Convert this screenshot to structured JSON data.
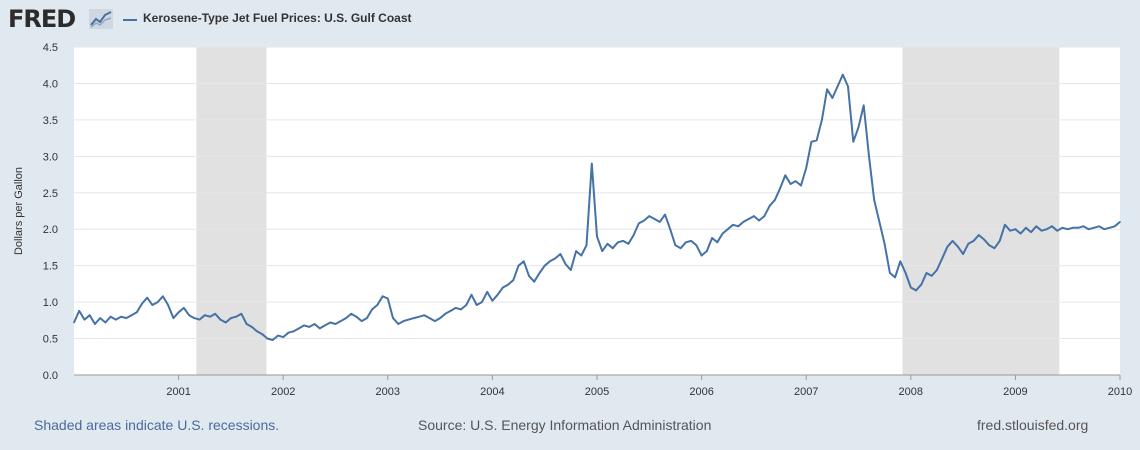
{
  "logo": {
    "text": "FRED"
  },
  "legend": {
    "series_name": "Kerosene-Type Jet Fuel Prices: U.S. Gulf Coast"
  },
  "footer": {
    "recession_note": "Shaded areas indicate U.S. recessions.",
    "source": "Source: U.S. Energy Information Administration",
    "url": "fred.stlouisfed.org"
  },
  "colors": {
    "series": "#4572a7",
    "recession": "#e1e1e1",
    "grid": "#e6e6e6",
    "background": "#e1e9f0"
  },
  "chart_data": {
    "type": "line",
    "title": "",
    "xlabel": "",
    "ylabel": "Dollars per Gallon",
    "ylim": [
      0,
      4.5
    ],
    "yticks": [
      "0.0",
      "0.5",
      "1.0",
      "1.5",
      "2.0",
      "2.5",
      "3.0",
      "3.5",
      "4.0",
      "4.5"
    ],
    "xlim": [
      2000.0,
      2010.0
    ],
    "xticks": [
      "2001",
      "2002",
      "2003",
      "2004",
      "2005",
      "2006",
      "2007",
      "2008",
      "2009",
      "2010"
    ],
    "grid": true,
    "legend_position": "top-left",
    "recessions": [
      [
        2001.17,
        2001.84
      ],
      [
        2007.92,
        2009.42
      ]
    ],
    "series": [
      {
        "name": "Kerosene-Type Jet Fuel Prices: U.S. Gulf Coast",
        "x": [
          2000.0,
          2000.05,
          2000.1,
          2000.15,
          2000.2,
          2000.25,
          2000.3,
          2000.35,
          2000.4,
          2000.45,
          2000.5,
          2000.55,
          2000.6,
          2000.65,
          2000.7,
          2000.75,
          2000.8,
          2000.85,
          2000.9,
          2000.95,
          2001.0,
          2001.05,
          2001.1,
          2001.15,
          2001.2,
          2001.25,
          2001.3,
          2001.35,
          2001.4,
          2001.45,
          2001.5,
          2001.55,
          2001.6,
          2001.65,
          2001.7,
          2001.75,
          2001.8,
          2001.85,
          2001.9,
          2001.95,
          2002.0,
          2002.05,
          2002.1,
          2002.15,
          2002.2,
          2002.25,
          2002.3,
          2002.35,
          2002.4,
          2002.45,
          2002.5,
          2002.55,
          2002.6,
          2002.65,
          2002.7,
          2002.75,
          2002.8,
          2002.85,
          2002.9,
          2002.95,
          2003.0,
          2003.05,
          2003.1,
          2003.15,
          2003.2,
          2003.25,
          2003.3,
          2003.35,
          2003.4,
          2003.45,
          2003.5,
          2003.55,
          2003.6,
          2003.65,
          2003.7,
          2003.75,
          2003.8,
          2003.85,
          2003.9,
          2003.95,
          2004.0,
          2004.05,
          2004.1,
          2004.15,
          2004.2,
          2004.25,
          2004.3,
          2004.35,
          2004.4,
          2004.45,
          2004.5,
          2004.55,
          2004.6,
          2004.65,
          2004.7,
          2004.75,
          2004.8,
          2004.85,
          2004.9,
          2004.95,
          2005.0,
          2005.05,
          2005.1,
          2005.15,
          2005.2,
          2005.25,
          2005.3,
          2005.35,
          2005.4,
          2005.45,
          2005.5,
          2005.55,
          2005.6,
          2005.65,
          2005.7,
          2005.75,
          2005.8,
          2005.85,
          2005.9,
          2005.95,
          2006.0,
          2006.05,
          2006.1,
          2006.15,
          2006.2,
          2006.25,
          2006.3,
          2006.35,
          2006.4,
          2006.45,
          2006.5,
          2006.55,
          2006.6,
          2006.65,
          2006.7,
          2006.75,
          2006.8,
          2006.85,
          2006.9,
          2006.95,
          2007.0,
          2007.05,
          2007.1,
          2007.15,
          2007.2,
          2007.25,
          2007.3,
          2007.35,
          2007.4,
          2007.45,
          2007.5,
          2007.55,
          2007.6,
          2007.65,
          2007.7,
          2007.75,
          2007.8,
          2007.85,
          2007.9,
          2007.95,
          2008.0,
          2008.05,
          2008.1,
          2008.15,
          2008.2,
          2008.25,
          2008.3,
          2008.35,
          2008.4,
          2008.45,
          2008.5,
          2008.55,
          2008.6,
          2008.65,
          2008.7,
          2008.75,
          2008.8,
          2008.85,
          2008.9,
          2008.95,
          2009.0,
          2009.05,
          2009.1,
          2009.15,
          2009.2,
          2009.25,
          2009.3,
          2009.35,
          2009.4,
          2009.45,
          2009.5,
          2009.55,
          2009.6,
          2009.65,
          2009.7,
          2009.75,
          2009.8,
          2009.85,
          2009.9,
          2009.95,
          2010.0
        ],
        "y": [
          0.72,
          0.88,
          0.76,
          0.82,
          0.7,
          0.78,
          0.72,
          0.8,
          0.76,
          0.8,
          0.78,
          0.82,
          0.86,
          0.98,
          1.06,
          0.96,
          1.0,
          1.08,
          0.96,
          0.78,
          0.86,
          0.92,
          0.82,
          0.78,
          0.76,
          0.82,
          0.8,
          0.84,
          0.76,
          0.72,
          0.78,
          0.8,
          0.84,
          0.7,
          0.66,
          0.6,
          0.56,
          0.5,
          0.48,
          0.54,
          0.52,
          0.58,
          0.6,
          0.64,
          0.68,
          0.66,
          0.7,
          0.64,
          0.68,
          0.72,
          0.7,
          0.74,
          0.78,
          0.84,
          0.8,
          0.74,
          0.78,
          0.9,
          0.96,
          1.08,
          1.05,
          0.78,
          0.7,
          0.74,
          0.76,
          0.78,
          0.8,
          0.82,
          0.78,
          0.74,
          0.78,
          0.84,
          0.88,
          0.92,
          0.9,
          0.96,
          1.1,
          0.96,
          1.0,
          1.14,
          1.02,
          1.1,
          1.2,
          1.24,
          1.3,
          1.5,
          1.56,
          1.36,
          1.28,
          1.4,
          1.5,
          1.56,
          1.6,
          1.66,
          1.52,
          1.44,
          1.7,
          1.64,
          1.78,
          2.9,
          1.9,
          1.7,
          1.8,
          1.74,
          1.82,
          1.84,
          1.8,
          1.92,
          2.08,
          2.12,
          2.18,
          2.14,
          2.1,
          2.2,
          2.0,
          1.78,
          1.74,
          1.82,
          1.84,
          1.78,
          1.64,
          1.7,
          1.88,
          1.82,
          1.94,
          2.0,
          2.06,
          2.04,
          2.1,
          2.14,
          2.18,
          2.12,
          2.18,
          2.32,
          2.4,
          2.56,
          2.74,
          2.62,
          2.66,
          2.6,
          2.84,
          3.2,
          3.22,
          3.5,
          3.92,
          3.8,
          3.96,
          4.12,
          3.96,
          3.2,
          3.4,
          3.7,
          3.0,
          2.4,
          2.1,
          1.8,
          1.4,
          1.34,
          1.56,
          1.4,
          1.2,
          1.16,
          1.24,
          1.4,
          1.36,
          1.44,
          1.6,
          1.76,
          1.84,
          1.76,
          1.66,
          1.8,
          1.84,
          1.92,
          1.86,
          1.78,
          1.74,
          1.84,
          2.06,
          1.98,
          2.0,
          1.94,
          2.02,
          1.96,
          2.04,
          1.98,
          2.0,
          2.04,
          1.98,
          2.02,
          2.0,
          2.02,
          2.02,
          2.04,
          2.0,
          2.02,
          2.04,
          2.0,
          2.02,
          2.04,
          2.1
        ]
      }
    ]
  }
}
